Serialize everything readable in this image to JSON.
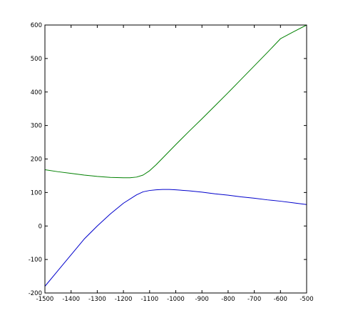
{
  "chart_data": {
    "type": "line",
    "title": "",
    "xlabel": "",
    "ylabel": "",
    "xlim": [
      -1500,
      -500
    ],
    "ylim": [
      -200,
      600
    ],
    "grid": false,
    "legend": "none",
    "xticks": [
      -1500,
      -1400,
      -1300,
      -1200,
      -1100,
      -1000,
      -900,
      -800,
      -700,
      -600,
      -500
    ],
    "yticks": [
      -200,
      -100,
      0,
      100,
      200,
      300,
      400,
      500,
      600
    ],
    "series": [
      {
        "color": "#008000",
        "x": [
          -1500,
          -1450,
          -1400,
          -1350,
          -1300,
          -1250,
          -1200,
          -1175,
          -1150,
          -1125,
          -1100,
          -1075,
          -1050,
          -1025,
          -1000,
          -950,
          -900,
          -850,
          -800,
          -750,
          -700,
          -650,
          -600,
          -550,
          -500
        ],
        "y": [
          168,
          162,
          157,
          152,
          148,
          145,
          144,
          144,
          146,
          152,
          165,
          183,
          203,
          223,
          243,
          282,
          320,
          359,
          398,
          438,
          478,
          518,
          559,
          580,
          600
        ]
      },
      {
        "color": "#0000cc",
        "x": [
          -1500,
          -1450,
          -1400,
          -1350,
          -1300,
          -1250,
          -1200,
          -1150,
          -1125,
          -1100,
          -1075,
          -1050,
          -1025,
          -1000,
          -950,
          -900,
          -850,
          -800,
          -750,
          -700,
          -650,
          -600,
          -550,
          -500
        ],
        "y": [
          -180,
          -133,
          -86,
          -39,
          0,
          36,
          68,
          93,
          102,
          106,
          108,
          109,
          109,
          108,
          105,
          101,
          96,
          92,
          87,
          83,
          78,
          74,
          69,
          64
        ]
      }
    ]
  }
}
